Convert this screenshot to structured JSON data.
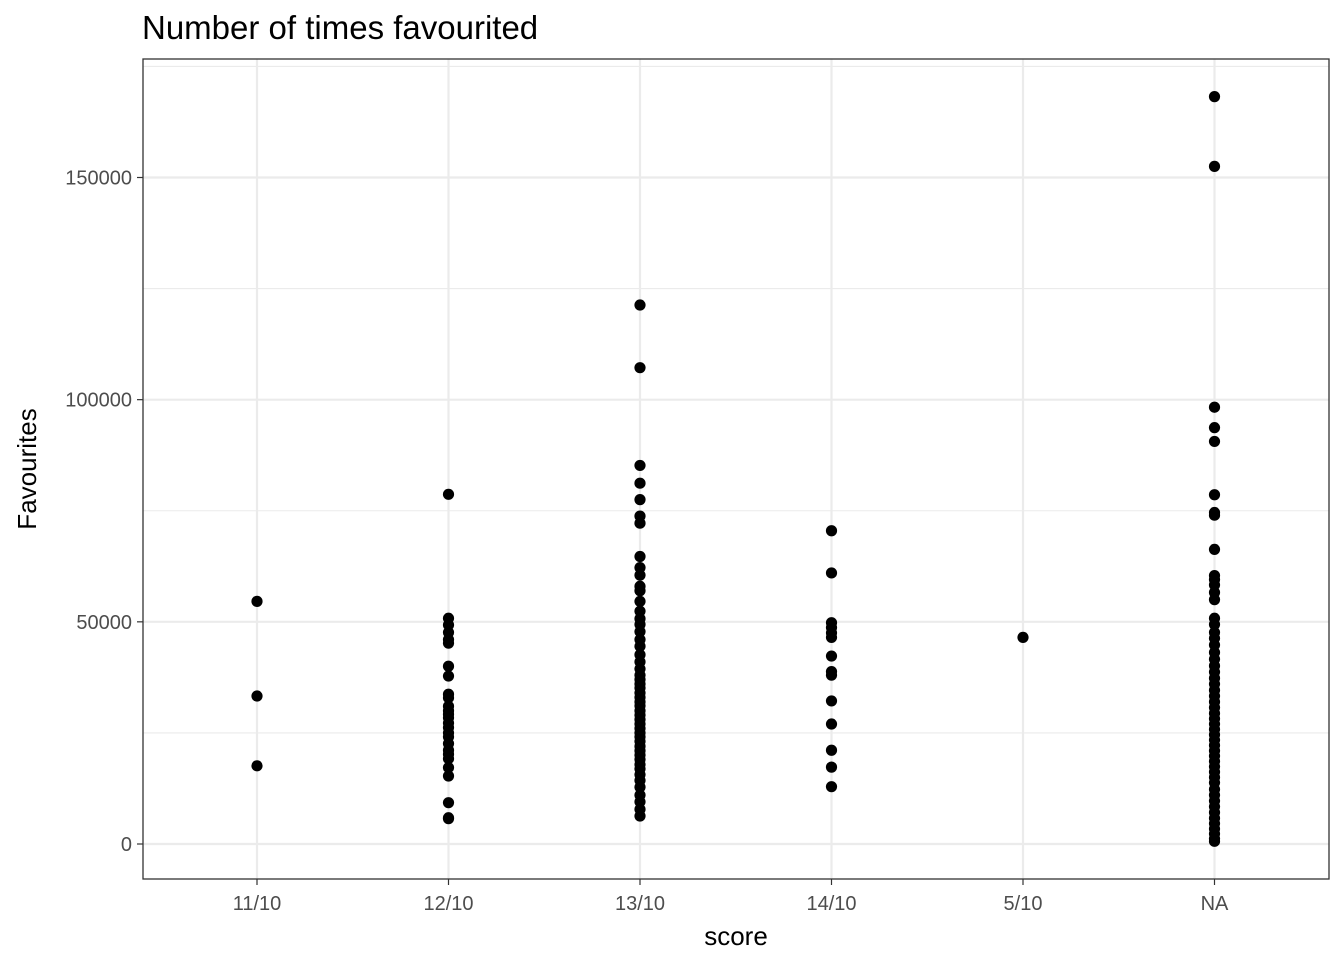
{
  "chart_data": {
    "type": "scatter",
    "title": "Number of times favourited",
    "xlabel": "score",
    "ylabel": "Favourites",
    "categories": [
      "11/10",
      "12/10",
      "13/10",
      "14/10",
      "5/10",
      "NA"
    ],
    "ylim": [
      -7500,
      176000
    ],
    "yticks": [
      0,
      50000,
      100000,
      150000
    ],
    "ytick_labels": [
      "0",
      "50000",
      "100000",
      "150000"
    ],
    "grid": true,
    "legend": "none",
    "point_color": "#000000",
    "series": [
      {
        "category": "11/10",
        "values": [
          54600,
          33300,
          17600
        ]
      },
      {
        "category": "12/10",
        "values": [
          78700,
          50800,
          49300,
          47600,
          46000,
          45200,
          40000,
          37800,
          33700,
          32900,
          31000,
          30000,
          29200,
          28400,
          27200,
          26200,
          25000,
          24100,
          22600,
          21100,
          20200,
          19200,
          17200,
          15300,
          9300,
          5900,
          5700
        ]
      },
      {
        "category": "13/10",
        "values": [
          121300,
          107200,
          85200,
          81200,
          77500,
          73800,
          72200,
          64700,
          62200,
          60500,
          58000,
          57000,
          54600,
          52400,
          50700,
          49400,
          47800,
          46000,
          44500,
          42600,
          41000,
          39400,
          38000,
          37000,
          36000,
          35100,
          34000,
          33000,
          32000,
          31100,
          30000,
          29000,
          28000,
          27000,
          26000,
          25000,
          24100,
          23100,
          22000,
          21000,
          20000,
          19000,
          17900,
          16900,
          15600,
          14300,
          12800,
          11000,
          9500,
          7800,
          6300
        ]
      },
      {
        "category": "14/10",
        "values": [
          70500,
          61000,
          49800,
          48700,
          47500,
          46500,
          42300,
          38800,
          38000,
          32200,
          27000,
          21100,
          17300,
          12900
        ]
      },
      {
        "category": "5/10",
        "values": [
          46500
        ]
      },
      {
        "category": "NA",
        "values": [
          168200,
          152500,
          98300,
          93700,
          90600,
          78600,
          74600,
          74000,
          66300,
          60400,
          59500,
          58300,
          56600,
          55000,
          50800,
          49400,
          47600,
          46300,
          44800,
          43100,
          41600,
          40100,
          38700,
          37300,
          36000,
          34600,
          33300,
          32000,
          30700,
          29400,
          28200,
          27000,
          25800,
          24600,
          23400,
          22200,
          21000,
          19800,
          18600,
          17400,
          16200,
          15000,
          13800,
          12300,
          11000,
          9700,
          8400,
          7100,
          5800,
          4600,
          3400,
          2300,
          1200,
          600
        ]
      }
    ]
  }
}
